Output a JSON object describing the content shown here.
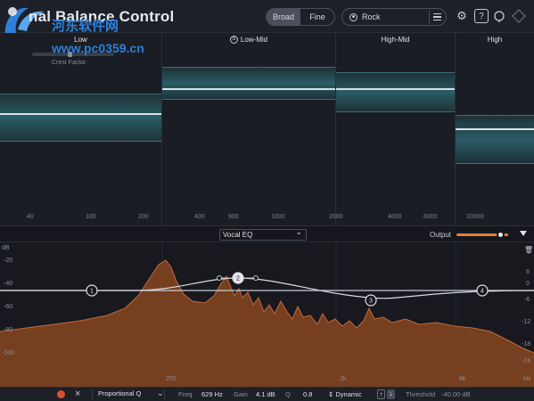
{
  "header": {
    "title": "nal Balance Control",
    "watermark_text": "河东软件网",
    "watermark_url": "www.pc0359.cn",
    "mode_options": [
      "Broad",
      "Fine"
    ],
    "mode_selected": "Fine",
    "target": "Rock"
  },
  "bands": [
    {
      "label": "Low",
      "ticks": [
        "40",
        "100",
        "200"
      ],
      "solo": false
    },
    {
      "label": "Low-Mid",
      "ticks": [
        "400",
        "900",
        "1000"
      ],
      "solo": true
    },
    {
      "label": "High-Mid",
      "ticks": [
        "2000",
        "4000",
        "6000"
      ],
      "solo": false
    },
    {
      "label": "High",
      "ticks": [
        "10000"
      ],
      "solo": false
    }
  ],
  "crest_factor_label": "Crest Factor",
  "midbar": {
    "preset": "Vocal EQ",
    "output_label": "Output",
    "output_level": 0.86
  },
  "eq": {
    "db_scale_left": [
      "dB",
      "-20",
      "-40",
      "-60",
      "-80",
      "-100"
    ],
    "db_scale_right": [
      "6",
      "0",
      "-6",
      "-12",
      "-18",
      "-24"
    ],
    "freq_labels": [
      "250",
      "2k",
      "8k",
      "Hz"
    ],
    "nodes": [
      "1",
      "2",
      "3",
      "4"
    ]
  },
  "bottom": {
    "shape": "Proportional Q",
    "freq_label": "Freq",
    "freq_value": "629 Hz",
    "gain_label": "Gain",
    "gain_value": "4.1 dB",
    "q_label": "Q",
    "q_value": "0.8",
    "dynamic_label": "Dynamic",
    "threshold_label": "Threshold",
    "threshold_value": "-40.00 dB"
  },
  "colors": {
    "accent": "#e07f3c",
    "band_fill": "#2a5c66",
    "spectrum": "#8a4a26",
    "background": "#14161b"
  }
}
